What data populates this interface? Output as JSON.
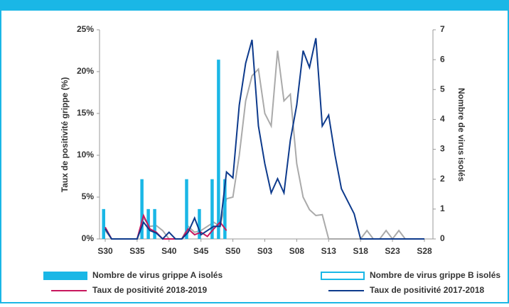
{
  "chart_data": {
    "type": "bar-line",
    "y_label": "Taux de positivité grippe (%)",
    "y2_label": "Nombre de virus isolés",
    "categories": [
      "S30",
      null,
      null,
      null,
      null,
      "S35",
      null,
      null,
      null,
      null,
      "S40",
      null,
      null,
      null,
      null,
      "S45",
      null,
      null,
      null,
      null,
      "S50",
      null,
      null,
      null,
      null,
      "S03",
      null,
      null,
      null,
      null,
      "S08",
      null,
      null,
      null,
      null,
      "S13",
      null,
      null,
      null,
      null,
      "S18",
      null,
      null,
      null,
      null,
      "S23",
      null,
      null,
      null,
      null,
      "S28"
    ],
    "ylim": [
      0,
      25
    ],
    "yticks": [
      {
        "value": 0,
        "label": "0%"
      },
      {
        "value": 5,
        "label": "5%"
      },
      {
        "value": 10,
        "label": "10%"
      },
      {
        "value": 15,
        "label": "15%"
      },
      {
        "value": 20,
        "label": "20%"
      },
      {
        "value": 25,
        "label": "25%"
      }
    ],
    "y2lim": [
      0,
      7
    ],
    "y2ticks": [
      0,
      1,
      2,
      3,
      4,
      5,
      6,
      7
    ],
    "series": [
      {
        "name": "Nombre de virus grippe A isolés",
        "kind": "bar",
        "axis": "y2",
        "color": "#1ab7e6",
        "values": [
          1,
          0,
          0,
          0,
          0,
          0,
          2,
          1,
          1,
          0,
          0,
          0,
          0,
          2,
          0,
          1,
          0,
          2,
          6,
          2,
          0,
          0,
          0,
          0,
          0,
          0,
          0,
          0,
          0,
          0,
          0,
          0,
          0,
          0,
          0,
          0,
          0,
          0,
          0,
          0,
          0,
          0,
          0,
          0,
          0,
          0,
          0,
          0,
          0,
          0,
          0
        ]
      },
      {
        "name": "Nombre de virus grippe B isolés",
        "kind": "bar",
        "axis": "y2",
        "color": "#1ab7e6",
        "values": [
          0,
          0,
          0,
          0,
          0,
          0,
          0,
          0,
          0,
          0,
          0,
          0,
          0,
          0,
          0,
          0,
          0,
          0,
          0,
          0,
          0,
          0,
          0,
          0,
          0,
          0,
          0,
          0,
          0,
          0,
          0,
          0,
          0,
          0,
          0,
          0,
          0,
          0,
          0,
          0,
          0,
          0,
          0,
          0,
          0,
          0,
          0,
          0,
          0,
          0,
          0
        ]
      },
      {
        "name": "Taux de positivité 2018-2019",
        "kind": "line",
        "color": "#c8175d",
        "values": [
          1.4,
          0,
          0,
          0,
          0,
          0,
          2.8,
          1.2,
          0.8,
          0,
          0,
          0,
          0,
          1.2,
          0.5,
          0.8,
          0.3,
          1.2,
          2.0,
          1.0,
          null,
          null,
          null,
          null,
          null,
          null,
          null,
          null,
          null,
          null,
          null,
          null,
          null,
          null,
          null,
          null,
          null,
          null,
          null,
          null,
          null,
          null,
          null,
          null,
          null,
          null,
          null,
          null,
          null,
          null,
          null
        ]
      },
      {
        "name": "Taux de positivité 2017-2018",
        "kind": "line",
        "color": "#0d3a8c",
        "values": [
          1.2,
          0,
          0,
          0,
          0,
          0,
          2.0,
          1.0,
          0.7,
          0,
          0.8,
          0,
          0,
          0.8,
          2.5,
          0.5,
          1.0,
          1.5,
          1.5,
          8.0,
          7.3,
          16,
          21,
          23.8,
          13.5,
          9.0,
          5.5,
          7.2,
          5.5,
          11.8,
          16,
          22.5,
          20.5,
          24,
          13.5,
          14.8,
          10,
          6,
          4.5,
          3,
          0,
          0,
          0,
          0,
          0,
          0,
          0,
          0,
          0,
          0,
          0
        ]
      },
      {
        "kind": "line",
        "color": "#aaaaaa",
        "values": [
          1.0,
          0,
          0,
          0,
          0,
          0,
          2.5,
          1.5,
          1.6,
          1.0,
          0,
          0,
          0,
          1.5,
          0.8,
          1.0,
          1.5,
          2.0,
          1.5,
          4.8,
          5.0,
          10,
          16.5,
          19.5,
          20.3,
          15,
          13.5,
          22.5,
          16.5,
          17.3,
          9,
          5,
          3.5,
          2.8,
          2.9,
          0,
          0,
          0,
          0,
          0,
          0,
          1.0,
          0,
          0,
          1.0,
          0,
          1.0,
          0,
          0,
          0,
          0
        ]
      }
    ]
  }
}
